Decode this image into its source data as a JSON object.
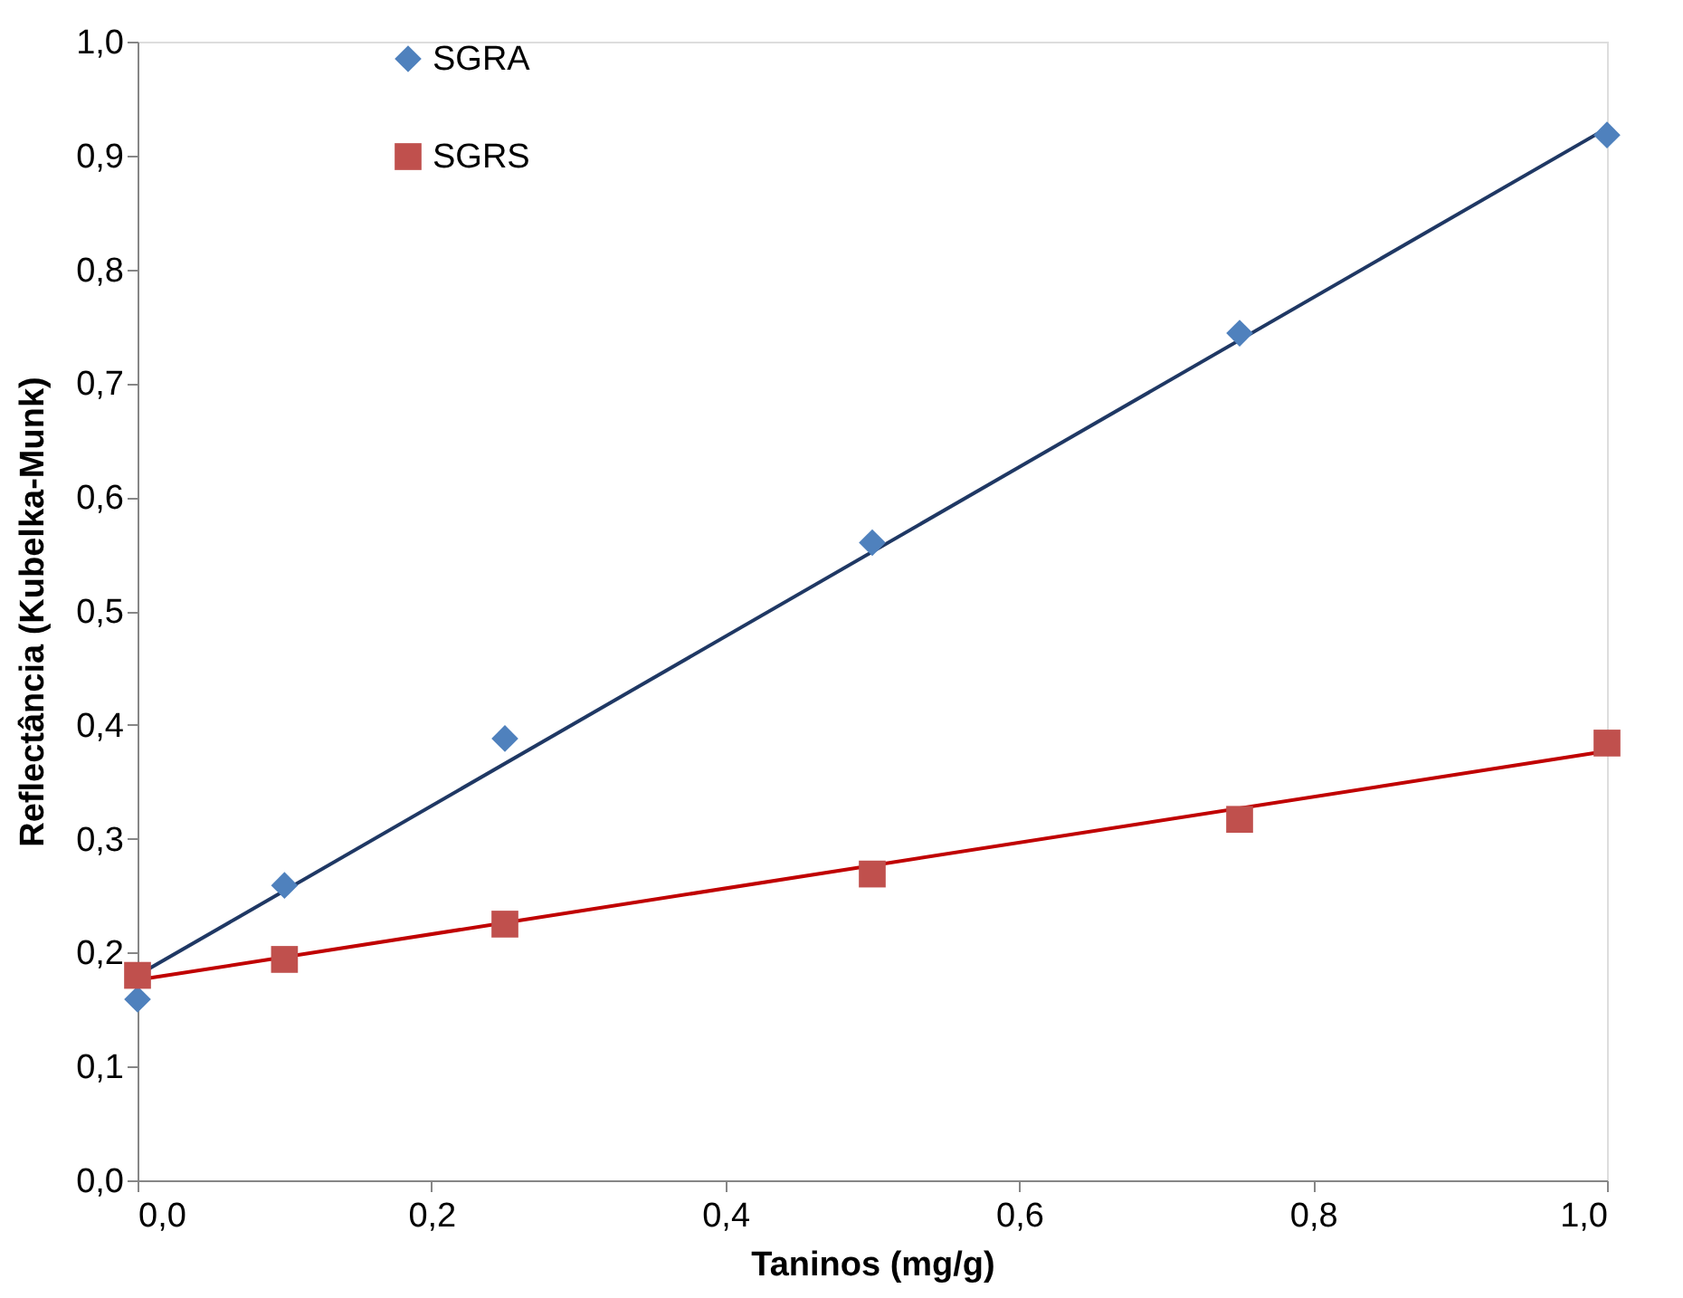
{
  "chart_data": {
    "type": "scatter",
    "xlabel": "Taninos (mg/g)",
    "ylabel": "Reflectância (Kubelka-Munk)",
    "xlim": [
      0,
      1
    ],
    "ylim": [
      0,
      1
    ],
    "xticks": [
      {
        "value": 0,
        "label": "0,0"
      },
      {
        "value": 0.2,
        "label": "0,2"
      },
      {
        "value": 0.4,
        "label": "0,4"
      },
      {
        "value": 0.6,
        "label": "0,6"
      },
      {
        "value": 0.8,
        "label": "0,8"
      },
      {
        "value": 1,
        "label": "1,0"
      }
    ],
    "yticks": [
      {
        "value": 0,
        "label": "0,0"
      },
      {
        "value": 0.1,
        "label": "0,1"
      },
      {
        "value": 0.2,
        "label": "0,2"
      },
      {
        "value": 0.3,
        "label": "0,3"
      },
      {
        "value": 0.4,
        "label": "0,4"
      },
      {
        "value": 0.5,
        "label": "0,5"
      },
      {
        "value": 0.6,
        "label": "0,6"
      },
      {
        "value": 0.7,
        "label": "0,7"
      },
      {
        "value": 0.8,
        "label": "0,8"
      },
      {
        "value": 0.9,
        "label": "0,9"
      },
      {
        "value": 1,
        "label": "1,0"
      }
    ],
    "grid": false,
    "legend": "top left",
    "series": [
      {
        "type": "line",
        "color": "#1f3864",
        "x": [
          0,
          1
        ],
        "values": [
          0.18,
          0.924
        ],
        "marker": "none"
      },
      {
        "type": "line",
        "color": "#c00000",
        "x": [
          0,
          1
        ],
        "values": [
          0.176,
          0.377
        ],
        "marker": "none"
      },
      {
        "name": "SGRA",
        "color": "#4f81bd",
        "marker": "diamond",
        "x": [
          0,
          0.1,
          0.25,
          0.5,
          0.75,
          1
        ],
        "values": [
          0.159,
          0.259,
          0.388,
          0.56,
          0.744,
          0.918
        ]
      },
      {
        "name": "SGRS",
        "color": "#c0504d",
        "marker": "square",
        "x": [
          0,
          0.1,
          0.25,
          0.5,
          0.75,
          1
        ],
        "values": [
          0.18,
          0.194,
          0.225,
          0.269,
          0.317,
          0.384
        ]
      }
    ]
  }
}
